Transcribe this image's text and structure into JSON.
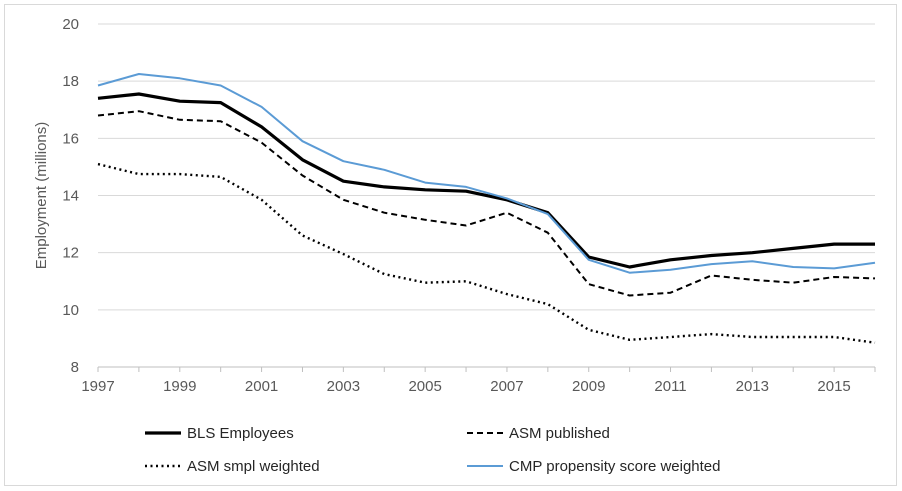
{
  "chart_data": {
    "type": "line",
    "title": "",
    "xlabel": "",
    "ylabel": "Employment  (millions)",
    "xlim": [
      1997,
      2016
    ],
    "ylim": [
      8,
      20
    ],
    "x_ticks": [
      1997,
      1999,
      2001,
      2003,
      2005,
      2007,
      2009,
      2011,
      2013,
      2015
    ],
    "y_ticks": [
      8,
      10,
      12,
      14,
      16,
      18,
      20
    ],
    "grid": "horizontal",
    "legend_position": "bottom",
    "x": [
      1997,
      1998,
      1999,
      2000,
      2001,
      2002,
      2003,
      2004,
      2005,
      2006,
      2007,
      2008,
      2009,
      2010,
      2011,
      2012,
      2013,
      2014,
      2015,
      2016
    ],
    "series": [
      {
        "name": "BLS Employees",
        "style": "solid-thick",
        "color": "#000000",
        "values": [
          17.4,
          17.55,
          17.3,
          17.25,
          16.4,
          15.25,
          14.5,
          14.3,
          14.2,
          14.15,
          13.85,
          13.4,
          11.85,
          11.5,
          11.75,
          11.9,
          12.0,
          12.15,
          12.3,
          12.3
        ]
      },
      {
        "name": "ASM published",
        "style": "dashed",
        "color": "#000000",
        "values": [
          16.8,
          16.95,
          16.65,
          16.6,
          15.85,
          14.7,
          13.85,
          13.4,
          13.15,
          12.95,
          13.4,
          12.7,
          10.9,
          10.5,
          10.6,
          11.2,
          11.05,
          10.95,
          11.15,
          11.1
        ]
      },
      {
        "name": "ASM smpl weighted",
        "style": "dotted",
        "color": "#000000",
        "values": [
          15.1,
          14.75,
          14.75,
          14.65,
          13.85,
          12.6,
          11.95,
          11.25,
          10.95,
          11.0,
          10.55,
          10.2,
          9.3,
          8.95,
          9.05,
          9.15,
          9.05,
          9.05,
          9.05,
          8.85
        ]
      },
      {
        "name": "CMP propensity score weighted",
        "style": "solid",
        "color": "#5b9bd5",
        "values": [
          17.85,
          18.25,
          18.1,
          17.85,
          17.1,
          15.9,
          15.2,
          14.9,
          14.45,
          14.3,
          13.9,
          13.35,
          11.75,
          11.3,
          11.4,
          11.6,
          11.7,
          11.5,
          11.45,
          11.65
        ]
      }
    ]
  }
}
